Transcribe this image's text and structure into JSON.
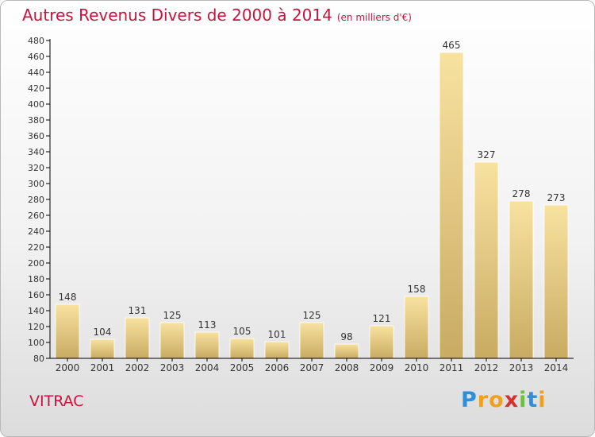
{
  "title": "Autres Revenus Divers de 2000 à 2014",
  "subtitle": "(en milliers d'€)",
  "commune": "VITRAC",
  "logo": {
    "letters": [
      "P",
      "r",
      "o",
      "x",
      "i",
      "t",
      "i"
    ],
    "colors": [
      "#2f8fd8",
      "#f0a020",
      "#f0a020",
      "#d8302c",
      "#6cc040",
      "#2f8fd8",
      "#f0a020"
    ]
  },
  "colors": {
    "title": "#c8143c",
    "bar_light": "#f8e2a0",
    "bar_dark": "#c9ab62",
    "axis": "#000000",
    "grid": "#d9d9d9"
  },
  "chart_data": {
    "type": "bar",
    "title": "Autres Revenus Divers de 2000 à 2014",
    "subtitle": "(en milliers d'€)",
    "xlabel": "",
    "ylabel": "",
    "ylim": [
      80,
      480
    ],
    "yticks": [
      80,
      100,
      120,
      140,
      160,
      180,
      200,
      220,
      240,
      260,
      280,
      300,
      320,
      340,
      360,
      380,
      400,
      420,
      440,
      460,
      480
    ],
    "grid": false,
    "categories": [
      "2000",
      "2001",
      "2002",
      "2003",
      "2004",
      "2005",
      "2006",
      "2007",
      "2008",
      "2009",
      "2010",
      "2011",
      "2012",
      "2013",
      "2014"
    ],
    "values": [
      148,
      104,
      131,
      125,
      113,
      105,
      101,
      125,
      98,
      121,
      158,
      465,
      327,
      278,
      273
    ]
  }
}
